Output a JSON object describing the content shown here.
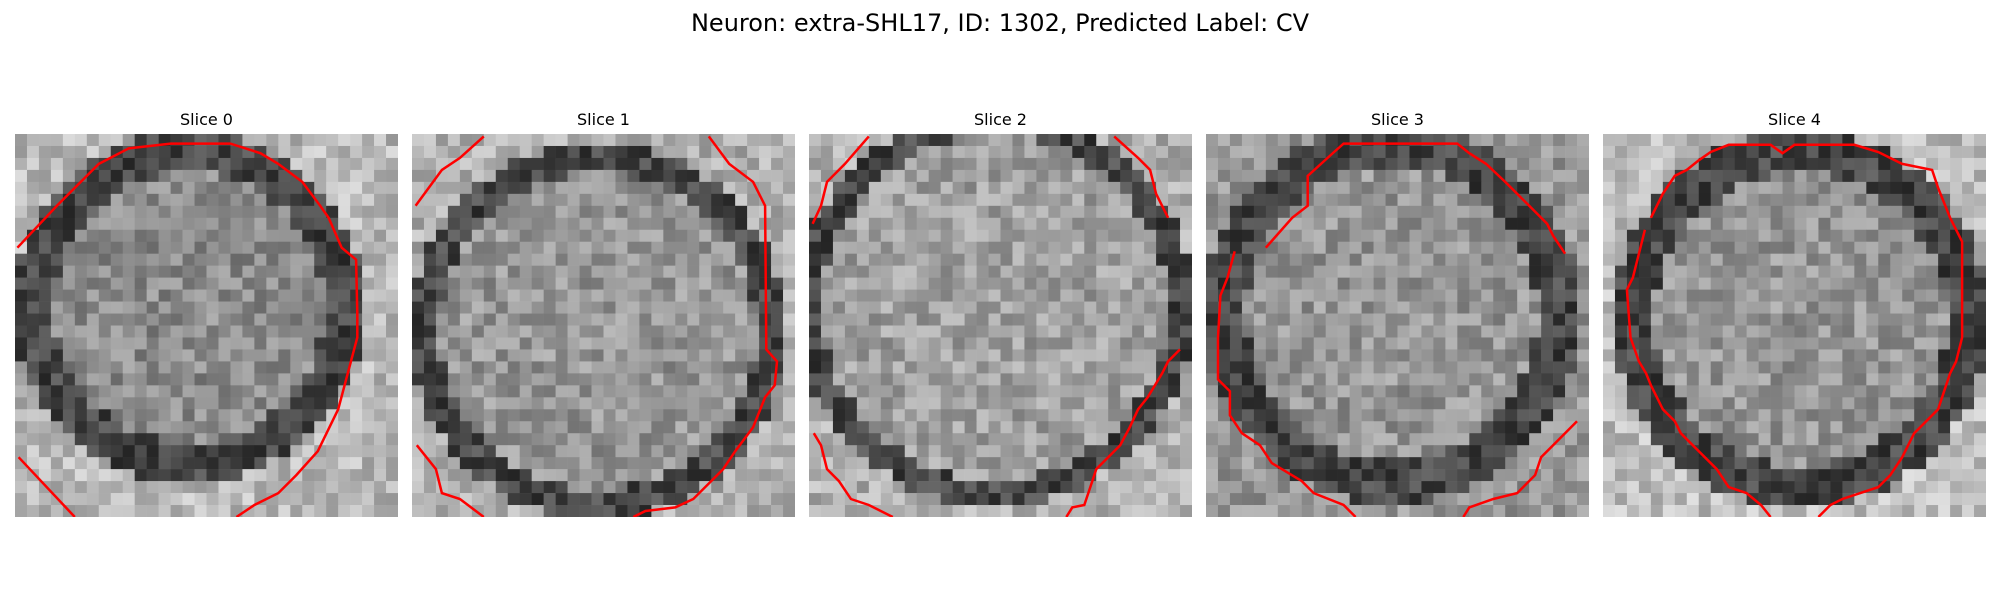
{
  "figure": {
    "title": "Neuron: extra-SHL17, ID: 1302, Predicted Label: CV"
  },
  "contour_color": "#ff0000",
  "panels": [
    {
      "title": "Slice 0"
    },
    {
      "title": "Slice 1"
    },
    {
      "title": "Slice 2"
    },
    {
      "title": "Slice 3"
    },
    {
      "title": "Slice 4"
    }
  ]
}
